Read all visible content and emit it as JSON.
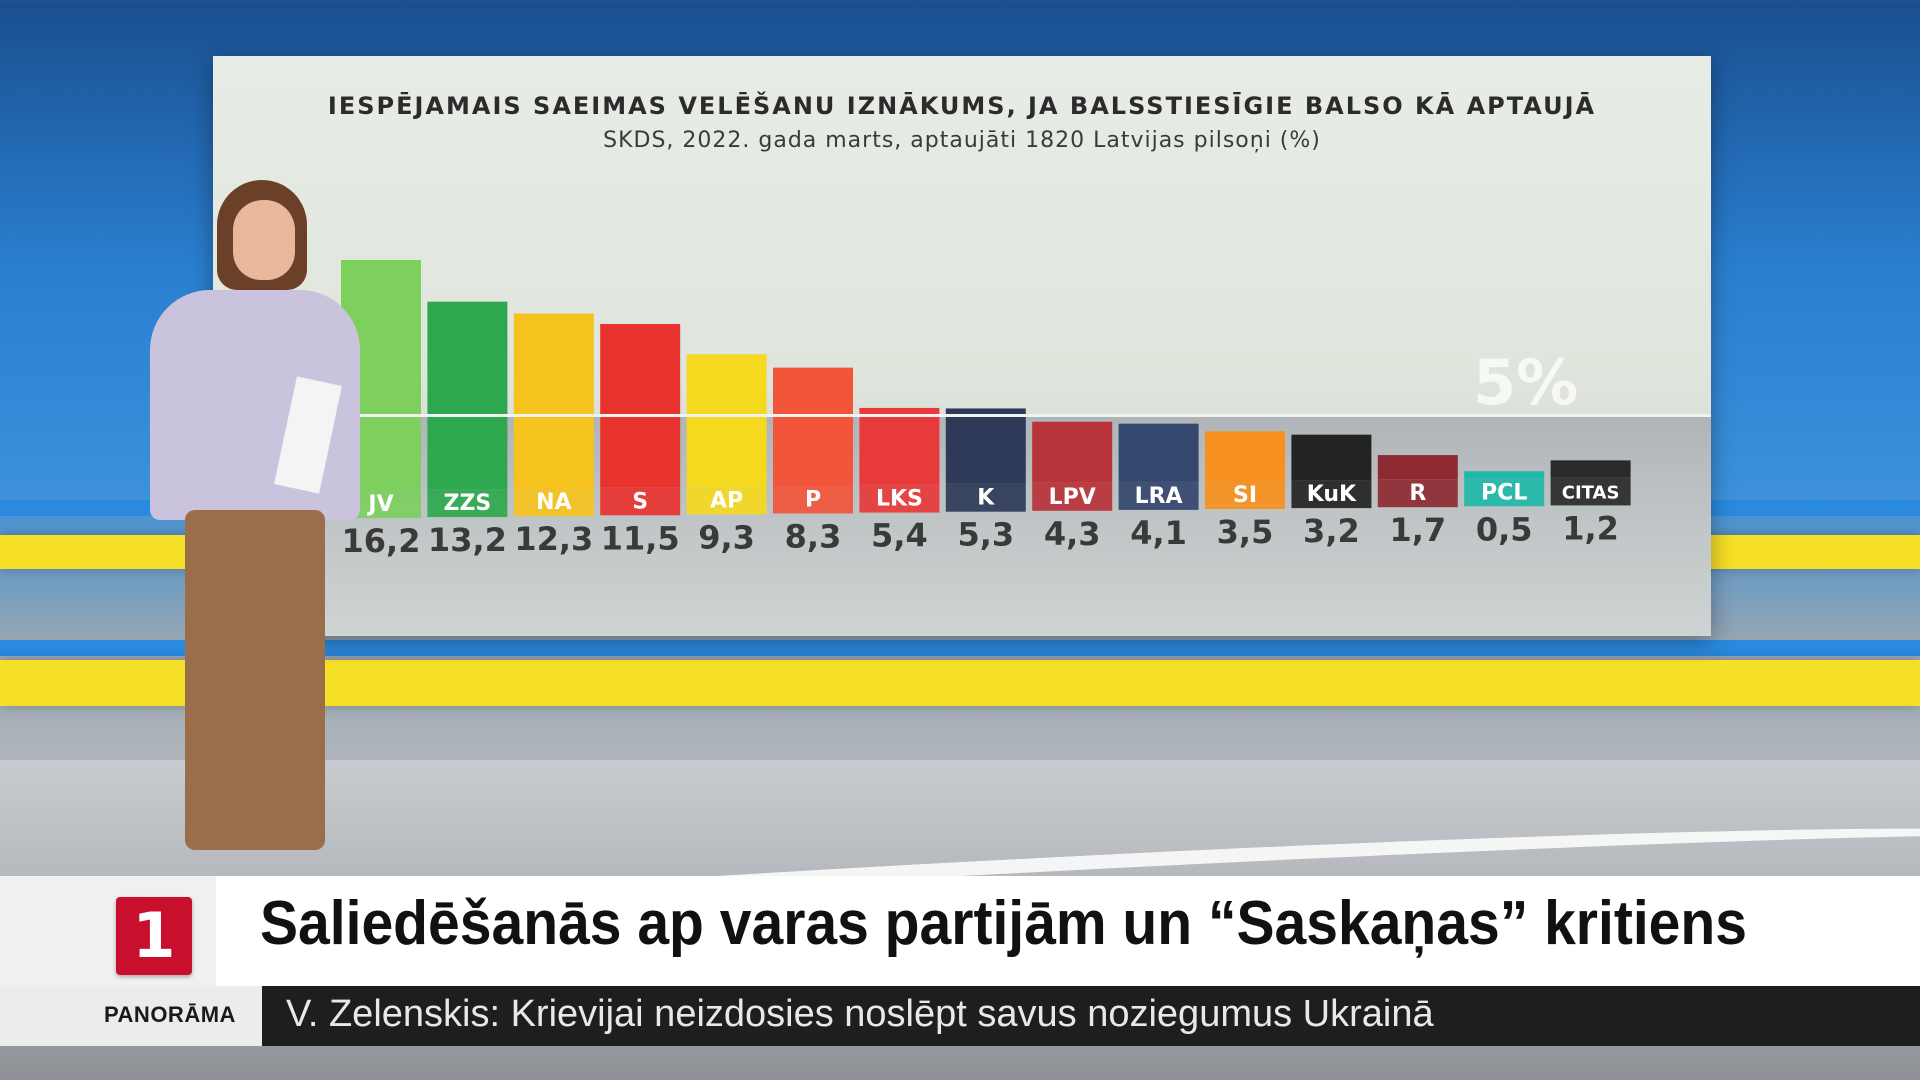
{
  "chart_data": {
    "type": "bar",
    "title": "IESPĒJAMAIS SAEIMAS VELĒŠANU IZNĀKUMS, JA BALSSTIESĪGIE BALSO KĀ APTAUJĀ",
    "subtitle": "SKDS, 2022. gada marts, aptaujāti 1820 Latvijas pilsoņi (%)",
    "categories": [
      "JV",
      "ZZS",
      "NA",
      "S",
      "AP",
      "P",
      "LKS",
      "K",
      "LPV",
      "LRA",
      "SI",
      "KuK",
      "R",
      "PCL",
      "CITAS"
    ],
    "values": [
      16.2,
      13.2,
      12.3,
      11.5,
      9.3,
      8.3,
      5.4,
      5.3,
      4.3,
      4.1,
      3.5,
      3.2,
      1.7,
      0.5,
      1.2
    ],
    "value_labels": [
      "16,2",
      "13,2",
      "12,3",
      "11,5",
      "9,3",
      "8,3",
      "5,4",
      "5,3",
      "4,3",
      "4,1",
      "3,5",
      "3,2",
      "1,7",
      "0,5",
      "1,2"
    ],
    "colors": [
      "#7dcf5e",
      "#2ea84e",
      "#f6c21e",
      "#e8322e",
      "#f5d91f",
      "#f2553a",
      "#e83a3a",
      "#2e3a58",
      "#b8333a",
      "#34476e",
      "#f7901e",
      "#232323",
      "#8e2a32",
      "#1fb8a8",
      "#2a2a2a"
    ],
    "label_text_colors": [
      "#ffffff",
      "#ffffff",
      "#ffffff",
      "#ffffff",
      "#ffffff",
      "#ffffff",
      "#ffffff",
      "#ffffff",
      "#ffffff",
      "#ffffff",
      "#ffffff",
      "#ffffff",
      "#ffffff",
      "#ffffff",
      "#ffffff"
    ],
    "threshold": 5,
    "threshold_label": "5%",
    "ylim": [
      0,
      18
    ]
  },
  "lower_third": {
    "channel_number": "1",
    "headline": "Saliedēšanās ap varas partijām un “Saskaņas” kritiens",
    "program": "PANORĀMA",
    "ticker": "V. Zelenskis: Krievijai neizdosies noslēpt savus noziegumus Ukrainā"
  }
}
